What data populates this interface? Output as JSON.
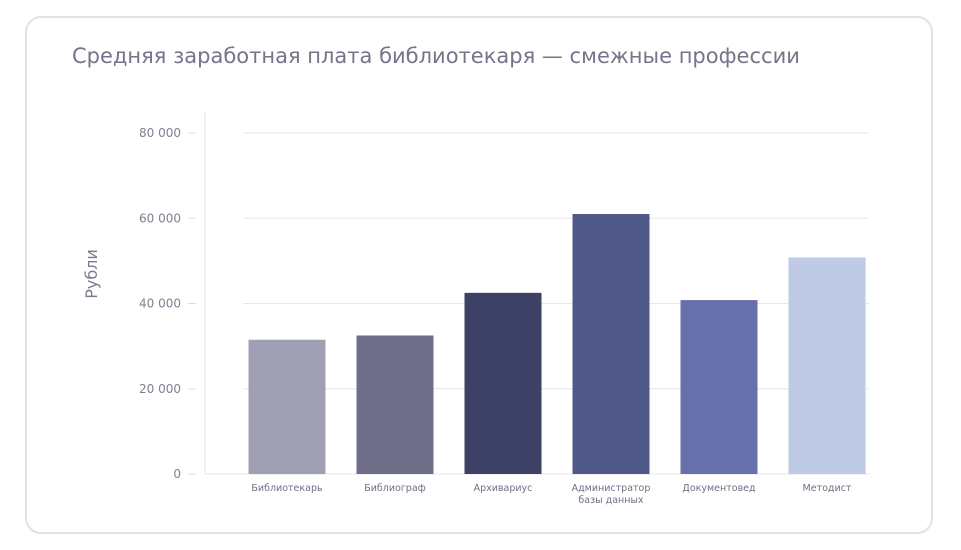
{
  "chart_data": {
    "type": "bar",
    "title": "Средняя заработная плата библиотекаря — смежные профессии",
    "ylabel": "Рубли",
    "xlabel": "",
    "ylim": [
      0,
      80000
    ],
    "yticks": [
      0,
      20000,
      40000,
      60000,
      80000
    ],
    "ytick_labels": [
      "0",
      "20 000",
      "40 000",
      "60 000",
      "80 000"
    ],
    "grid": true,
    "legend": "none",
    "categories": [
      [
        "Библиотекарь"
      ],
      [
        "Библиограф"
      ],
      [
        "Архивариус"
      ],
      [
        "Администратор",
        "базы данных"
      ],
      [
        "Документовед"
      ],
      [
        "Методист"
      ]
    ],
    "values": [
      31500,
      32500,
      42500,
      61000,
      40800,
      50800
    ],
    "colors": [
      "#a0a0b5",
      "#6e6e88",
      "#3e4166",
      "#505888",
      "#6870ab",
      "#bfcae4"
    ]
  }
}
